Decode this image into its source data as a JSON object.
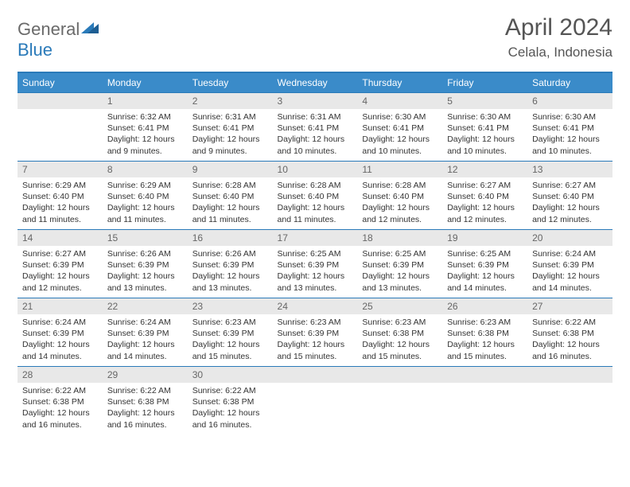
{
  "logo": {
    "general": "General",
    "blue": "Blue"
  },
  "header": {
    "month_title": "April 2024",
    "location": "Celala, Indonesia"
  },
  "colors": {
    "header_bg": "#3a8bc9",
    "border": "#2a7ab9",
    "daynum_bg": "#e8e8e8",
    "text": "#333333",
    "muted": "#666666"
  },
  "calendar": {
    "days_of_week": [
      "Sunday",
      "Monday",
      "Tuesday",
      "Wednesday",
      "Thursday",
      "Friday",
      "Saturday"
    ],
    "weeks": [
      [
        null,
        {
          "num": "1",
          "sunrise": "6:32 AM",
          "sunset": "6:41 PM",
          "daylight": "12 hours and 9 minutes."
        },
        {
          "num": "2",
          "sunrise": "6:31 AM",
          "sunset": "6:41 PM",
          "daylight": "12 hours and 9 minutes."
        },
        {
          "num": "3",
          "sunrise": "6:31 AM",
          "sunset": "6:41 PM",
          "daylight": "12 hours and 10 minutes."
        },
        {
          "num": "4",
          "sunrise": "6:30 AM",
          "sunset": "6:41 PM",
          "daylight": "12 hours and 10 minutes."
        },
        {
          "num": "5",
          "sunrise": "6:30 AM",
          "sunset": "6:41 PM",
          "daylight": "12 hours and 10 minutes."
        },
        {
          "num": "6",
          "sunrise": "6:30 AM",
          "sunset": "6:41 PM",
          "daylight": "12 hours and 10 minutes."
        }
      ],
      [
        {
          "num": "7",
          "sunrise": "6:29 AM",
          "sunset": "6:40 PM",
          "daylight": "12 hours and 11 minutes."
        },
        {
          "num": "8",
          "sunrise": "6:29 AM",
          "sunset": "6:40 PM",
          "daylight": "12 hours and 11 minutes."
        },
        {
          "num": "9",
          "sunrise": "6:28 AM",
          "sunset": "6:40 PM",
          "daylight": "12 hours and 11 minutes."
        },
        {
          "num": "10",
          "sunrise": "6:28 AM",
          "sunset": "6:40 PM",
          "daylight": "12 hours and 11 minutes."
        },
        {
          "num": "11",
          "sunrise": "6:28 AM",
          "sunset": "6:40 PM",
          "daylight": "12 hours and 12 minutes."
        },
        {
          "num": "12",
          "sunrise": "6:27 AM",
          "sunset": "6:40 PM",
          "daylight": "12 hours and 12 minutes."
        },
        {
          "num": "13",
          "sunrise": "6:27 AM",
          "sunset": "6:40 PM",
          "daylight": "12 hours and 12 minutes."
        }
      ],
      [
        {
          "num": "14",
          "sunrise": "6:27 AM",
          "sunset": "6:39 PM",
          "daylight": "12 hours and 12 minutes."
        },
        {
          "num": "15",
          "sunrise": "6:26 AM",
          "sunset": "6:39 PM",
          "daylight": "12 hours and 13 minutes."
        },
        {
          "num": "16",
          "sunrise": "6:26 AM",
          "sunset": "6:39 PM",
          "daylight": "12 hours and 13 minutes."
        },
        {
          "num": "17",
          "sunrise": "6:25 AM",
          "sunset": "6:39 PM",
          "daylight": "12 hours and 13 minutes."
        },
        {
          "num": "18",
          "sunrise": "6:25 AM",
          "sunset": "6:39 PM",
          "daylight": "12 hours and 13 minutes."
        },
        {
          "num": "19",
          "sunrise": "6:25 AM",
          "sunset": "6:39 PM",
          "daylight": "12 hours and 14 minutes."
        },
        {
          "num": "20",
          "sunrise": "6:24 AM",
          "sunset": "6:39 PM",
          "daylight": "12 hours and 14 minutes."
        }
      ],
      [
        {
          "num": "21",
          "sunrise": "6:24 AM",
          "sunset": "6:39 PM",
          "daylight": "12 hours and 14 minutes."
        },
        {
          "num": "22",
          "sunrise": "6:24 AM",
          "sunset": "6:39 PM",
          "daylight": "12 hours and 14 minutes."
        },
        {
          "num": "23",
          "sunrise": "6:23 AM",
          "sunset": "6:39 PM",
          "daylight": "12 hours and 15 minutes."
        },
        {
          "num": "24",
          "sunrise": "6:23 AM",
          "sunset": "6:39 PM",
          "daylight": "12 hours and 15 minutes."
        },
        {
          "num": "25",
          "sunrise": "6:23 AM",
          "sunset": "6:38 PM",
          "daylight": "12 hours and 15 minutes."
        },
        {
          "num": "26",
          "sunrise": "6:23 AM",
          "sunset": "6:38 PM",
          "daylight": "12 hours and 15 minutes."
        },
        {
          "num": "27",
          "sunrise": "6:22 AM",
          "sunset": "6:38 PM",
          "daylight": "12 hours and 16 minutes."
        }
      ],
      [
        {
          "num": "28",
          "sunrise": "6:22 AM",
          "sunset": "6:38 PM",
          "daylight": "12 hours and 16 minutes."
        },
        {
          "num": "29",
          "sunrise": "6:22 AM",
          "sunset": "6:38 PM",
          "daylight": "12 hours and 16 minutes."
        },
        {
          "num": "30",
          "sunrise": "6:22 AM",
          "sunset": "6:38 PM",
          "daylight": "12 hours and 16 minutes."
        },
        null,
        null,
        null,
        null
      ]
    ],
    "labels": {
      "sunrise": "Sunrise:",
      "sunset": "Sunset:",
      "daylight": "Daylight:"
    }
  }
}
